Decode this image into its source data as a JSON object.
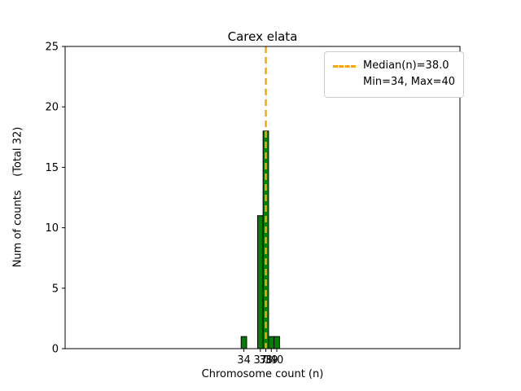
{
  "chart_data": {
    "type": "bar",
    "title": "Carex elata",
    "xlabel": "Chromosome count (n)",
    "ylabel": "Num of counts    (Total 32)",
    "x": [
      34,
      37,
      38,
      39,
      40
    ],
    "counts": [
      1,
      11,
      18,
      1,
      1
    ],
    "total_counts": 32,
    "median": 38.0,
    "min": 34,
    "max": 40,
    "xlim": [
      1.4,
      73.4
    ],
    "ylim": [
      0,
      25
    ],
    "xticks": [
      34,
      37,
      38,
      39,
      40
    ],
    "yticks": [
      0,
      5,
      10,
      15,
      20,
      25
    ],
    "bar_color": "#008000",
    "bar_edge_color": "#000000",
    "median_color": "#FFA500",
    "legend_position": "upper right",
    "grid": false,
    "legend": [
      "Median(n)=38.0",
      "Min=34, Max=40"
    ]
  }
}
